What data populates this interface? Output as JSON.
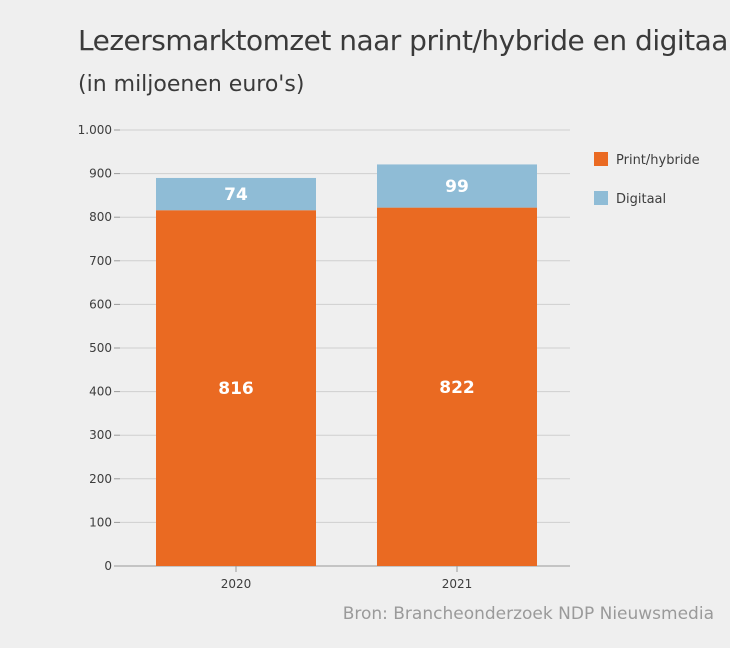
{
  "chart_data": {
    "type": "bar",
    "stacked": true,
    "title": "Lezersmarktomzet naar print/hybride en digitaal",
    "subtitle": "(in miljoenen euro's)",
    "categories": [
      "2020",
      "2021"
    ],
    "series": [
      {
        "name": "Print/hybride",
        "values": [
          816,
          822
        ],
        "color": "#ea6a22"
      },
      {
        "name": "Digitaal",
        "values": [
          74,
          99
        ],
        "color": "#8fbcd6"
      }
    ],
    "ylim": [
      0,
      1000
    ],
    "yticks": [
      0,
      100,
      200,
      300,
      400,
      500,
      600,
      700,
      800,
      900,
      1000
    ],
    "ytick_labels": [
      "0",
      "100",
      "200",
      "300",
      "400",
      "500",
      "600",
      "700",
      "800",
      "900",
      "1.000"
    ],
    "grid": true,
    "legend_position": "right",
    "source": "Bron: Brancheonderzoek NDP Nieuwsmedia"
  }
}
